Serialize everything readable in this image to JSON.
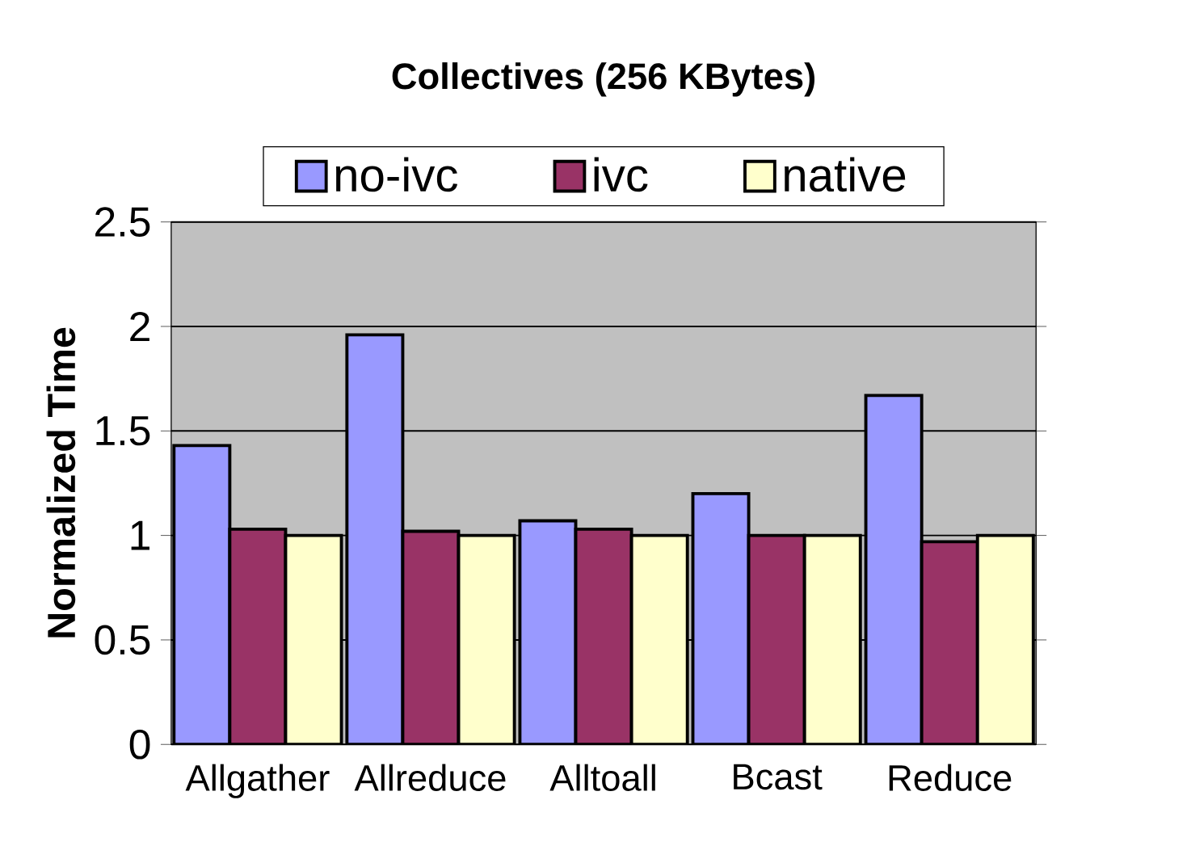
{
  "chart_data": {
    "type": "bar",
    "title": "Collectives (256 KBytes)",
    "ylabel": "Normalized Time",
    "categories": [
      "Allgather",
      "Allreduce",
      "Alltoall",
      "Bcast",
      "Reduce"
    ],
    "series": [
      {
        "name": "no-ivc",
        "color": "#9999ff",
        "values": [
          1.43,
          1.96,
          1.07,
          1.2,
          1.67
        ]
      },
      {
        "name": "ivc",
        "color": "#993366",
        "values": [
          1.03,
          1.02,
          1.03,
          1.0,
          0.97
        ]
      },
      {
        "name": "native",
        "color": "#ffffcc",
        "values": [
          1.0,
          1.0,
          1.0,
          1.0,
          1.0
        ]
      }
    ],
    "ylim": [
      0,
      2.5
    ],
    "yticks": [
      0,
      0.5,
      1,
      1.5,
      2,
      2.5
    ],
    "grid": "y",
    "legend": "top"
  }
}
